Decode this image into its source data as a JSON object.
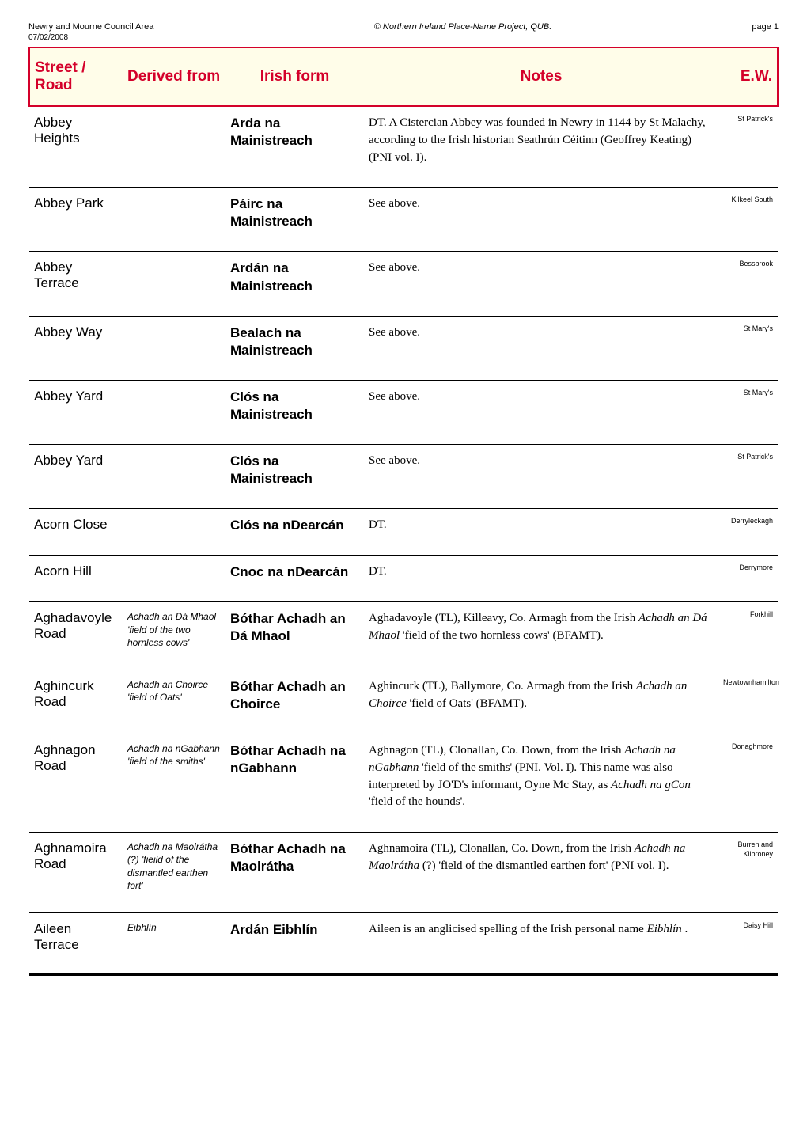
{
  "meta": {
    "area": "Newry and Mourne Council Area",
    "date": "07/02/2008",
    "project": "© Northern Ireland Place-Name Project, QUB.",
    "page": "page 1"
  },
  "headers": {
    "street": "Street / Road",
    "derived": "Derived from",
    "irish": "Irish form",
    "notes": "Notes",
    "ew": "E.W."
  },
  "rows": [
    {
      "street": "Abbey Heights",
      "derived": "",
      "irish": "Arda na Mainistreach",
      "notes": "DT. A Cistercian Abbey was founded in Newry in 1144 by St Malachy, according to the Irish historian Seathrún Céitinn (Geoffrey Keating) (PNI vol. I).",
      "ew": "St Patrick's"
    },
    {
      "street": "Abbey Park",
      "derived": "",
      "irish": "Páirc na Mainistreach",
      "notes": "See above.",
      "ew": "Kilkeel South"
    },
    {
      "street": "Abbey Terrace",
      "derived": "",
      "irish": "Ardán na Mainistreach",
      "notes": "See above.",
      "ew": "Bessbrook"
    },
    {
      "street": "Abbey Way",
      "derived": "",
      "irish": "Bealach na Mainistreach",
      "notes": "See above.",
      "ew": "St Mary's"
    },
    {
      "street": "Abbey Yard",
      "derived": "",
      "irish": "Clós na Mainistreach",
      "notes": "See above.",
      "ew": "St Mary's"
    },
    {
      "street": "Abbey Yard",
      "derived": "",
      "irish": "Clós na Mainistreach",
      "notes": "See above.",
      "ew": "St Patrick's"
    },
    {
      "street": "Acorn Close",
      "derived": "",
      "irish": "Clós na nDearcán",
      "notes": "DT.",
      "ew": "Derryleckagh"
    },
    {
      "street": "Acorn Hill",
      "derived": "",
      "irish": "Cnoc na nDearcán",
      "notes": "DT.",
      "ew": "Derrymore"
    },
    {
      "street": "Aghadavoyle Road",
      "derived": "Achadh an Dá Mhaol 'field of the two hornless cows'",
      "irish": "Bóthar Achadh an Dá Mhaol",
      "notes": "Aghadavoyle (TL), Killeavy, Co. Armagh from the Irish <span class=\"ital\">Achadh an Dá Mhaol</span> 'field of the two hornless cows' (BFAMT).",
      "ew": "Forkhill"
    },
    {
      "street": "Aghincurk Road",
      "derived": "Achadh an Choirce 'field of Oats'",
      "irish": "Bóthar Achadh an Choirce",
      "notes": "Aghincurk (TL), Ballymore, Co. Armagh from the Irish <span class=\"ital\">Achadh an Choirce</span> 'field of Oats' (BFAMT).",
      "ew": "Newtownhamilton"
    },
    {
      "street": "Aghnagon Road",
      "derived": "Achadh na nGabhann 'field of the smiths'",
      "irish": "Bóthar Achadh na nGabhann",
      "notes": "Aghnagon (TL), Clonallan, Co. Down, from the Irish <span class=\"ital\">Achadh na nGabhann</span> 'field of the smiths' (PNI. Vol. I). This name was also interpreted by JO'D's informant, Oyne Mc Stay, as <span class=\"ital\">Achadh na gCon</span> 'field of the hounds'.",
      "ew": "Donaghmore"
    },
    {
      "street": "Aghnamoira Road",
      "derived": "Achadh na Maolrátha (?) 'fieild of the dismantled earthen fort'",
      "irish": "Bóthar Achadh na Maolrátha",
      "notes": "Aghnamoira (TL), Clonallan, Co. Down, from the Irish <span class=\"ital\">Achadh na Maolrátha</span> (?) 'field of the dismantled earthen fort' (PNI vol. I).",
      "ew": "Burren and Kilbroney"
    },
    {
      "street": "Aileen Terrace",
      "derived": "Eibhlín",
      "irish": "Ardán Eibhlín",
      "notes": "Aileen is an anglicised spelling of the Irish personal name <span class=\"ital\">Eibhlín</span> .",
      "ew": "Daisy Hill"
    }
  ],
  "style": {
    "header_bg": "#fffde9",
    "header_border": "#d4002a",
    "header_text": "#d4002a",
    "row_border": "#000000",
    "notes_font": "serif",
    "other_font": "sans-serif-narrow"
  }
}
